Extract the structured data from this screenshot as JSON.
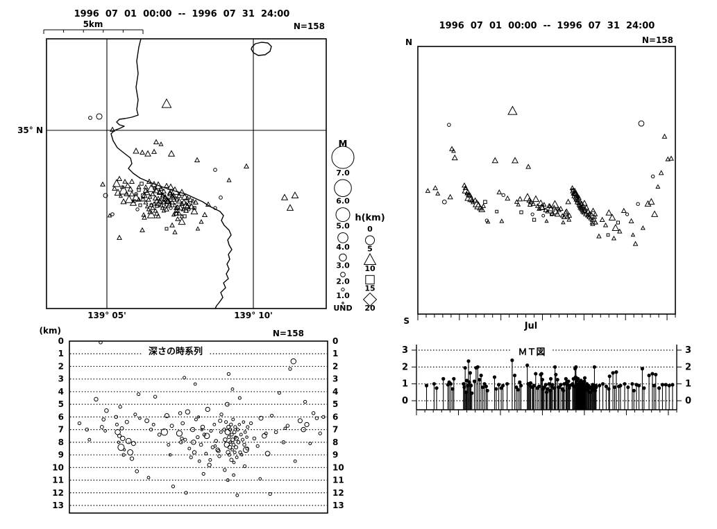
{
  "colors": {
    "ink": "#000000",
    "paper": "#ffffff"
  },
  "chart_data": {
    "type": "scatter",
    "description": "Earthquake swarm summary figure: epicenter map, N-S vs time plot, depth time-series, and magnitude-time (M-T) stem plot. All four panels depict the same 158 hypocenters.",
    "panels": {
      "map": {
        "title": "1996  07  01  00:00  --  1996  07  31  24:00",
        "n_label": "N=158",
        "scale_label": "5km",
        "lat_label": "35° N",
        "lon_labels": [
          "139° 05'",
          "139° 10'"
        ]
      },
      "time_ns": {
        "title": "1996  07  01  00:00  --  1996  07  31  24:00",
        "n_label": "N=158",
        "north_label": "N",
        "south_label": "S",
        "month_label": "Jul"
      },
      "depth_time": {
        "title": "深さの時系列",
        "unit_label": "(km)",
        "n_label": "N=158",
        "ticks": [
          "0",
          "1",
          "2",
          "3",
          "4",
          "5",
          "6",
          "7",
          "8",
          "9",
          "10",
          "11",
          "12",
          "13"
        ]
      },
      "mt": {
        "title": "ＭＴ図",
        "yticks": [
          "3",
          "2",
          "1",
          "0"
        ]
      }
    },
    "legend": {
      "m_title": "M",
      "m_items": [
        {
          "label": "7.0",
          "r": 16
        },
        {
          "label": "6.0",
          "r": 12.3
        },
        {
          "label": "5.0",
          "r": 10
        },
        {
          "label": "4.0",
          "r": 7.3
        },
        {
          "label": "3.0",
          "r": 5.2
        },
        {
          "label": "2.0",
          "r": 3.4
        },
        {
          "label": "1.0",
          "r": 2.2
        },
        {
          "label": "UND",
          "r": 1.2
        }
      ],
      "h_title": "h(km)",
      "h_rows": [
        {
          "text": "0"
        },
        {
          "symbol": "circle"
        },
        {
          "text": "5"
        },
        {
          "symbol": "triangle"
        },
        {
          "text": "10"
        },
        {
          "symbol": "square"
        },
        {
          "text": "15"
        },
        {
          "symbol": "diamond"
        },
        {
          "text": "20"
        }
      ]
    },
    "coastline": [
      [
        203,
        56
      ],
      [
        200,
        68
      ],
      [
        197,
        88
      ],
      [
        199,
        106
      ],
      [
        196,
        126
      ],
      [
        199,
        144
      ],
      [
        197,
        158
      ],
      [
        199,
        166
      ],
      [
        190,
        169
      ],
      [
        180,
        171
      ],
      [
        172,
        172
      ],
      [
        168,
        176
      ],
      [
        172,
        180
      ],
      [
        179,
        182
      ],
      [
        173,
        185
      ],
      [
        165,
        188
      ],
      [
        160,
        193
      ],
      [
        163,
        203
      ],
      [
        169,
        213
      ],
      [
        179,
        221
      ],
      [
        188,
        228
      ],
      [
        190,
        236
      ],
      [
        185,
        243
      ],
      [
        192,
        250
      ],
      [
        202,
        257
      ],
      [
        216,
        263
      ],
      [
        232,
        269
      ],
      [
        250,
        275
      ],
      [
        268,
        280
      ],
      [
        281,
        286
      ],
      [
        292,
        291
      ],
      [
        301,
        297
      ],
      [
        309,
        301
      ],
      [
        317,
        305
      ],
      [
        322,
        311
      ],
      [
        319,
        318
      ],
      [
        323,
        325
      ],
      [
        330,
        332
      ],
      [
        333,
        339
      ],
      [
        328,
        346
      ],
      [
        330,
        353
      ],
      [
        334,
        360
      ],
      [
        329,
        367
      ],
      [
        331,
        374
      ],
      [
        327,
        381
      ],
      [
        330,
        388
      ],
      [
        326,
        395
      ],
      [
        329,
        402
      ],
      [
        322,
        408
      ],
      [
        325,
        415
      ],
      [
        318,
        422
      ],
      [
        321,
        429
      ],
      [
        316,
        436
      ],
      [
        312,
        441
      ],
      [
        310,
        445
      ]
    ],
    "island": [
      [
        363,
        68
      ],
      [
        368,
        63
      ],
      [
        377,
        61
      ],
      [
        386,
        62
      ],
      [
        391,
        67
      ],
      [
        389,
        74
      ],
      [
        382,
        79
      ],
      [
        372,
        80
      ],
      [
        365,
        76
      ],
      [
        362,
        71
      ],
      [
        363,
        68
      ]
    ],
    "events_format": [
      "t_days_since_jul1",
      "map_x_px",
      "map_y_px",
      "depth_km",
      "magnitude"
    ],
    "events": [
      [
        1.2,
        148,
        266,
        6.5,
        0.9
      ],
      [
        2.1,
        190,
        262,
        7,
        1
      ],
      [
        2.4,
        200,
        270,
        7.8,
        0.75
      ],
      [
        3.2,
        152,
        282,
        4.6,
        1.3
      ],
      [
        3.75,
        130,
        170,
        0.1,
        0.95
      ],
      [
        4.1,
        225,
        205,
        6.2,
        1
      ],
      [
        4.3,
        232,
        208,
        7.1,
        0.7
      ],
      [
        3.9,
        210,
        275,
        6.8,
        1.1
      ],
      [
        4.45,
        196,
        218,
        5.5,
        1.3
      ],
      [
        5.6,
        172,
        258,
        6,
        1
      ],
      [
        5.7,
        180,
        262,
        6.6,
        0.8
      ],
      [
        5.8,
        168,
        265,
        7.2,
        1.95
      ],
      [
        5.9,
        176,
        270,
        8,
        0.5
      ],
      [
        6,
        184,
        268,
        7.5,
        1.2
      ],
      [
        6.1,
        165,
        272,
        5.2,
        0.9
      ],
      [
        6.2,
        178,
        275,
        8.4,
        2.35
      ],
      [
        6.3,
        188,
        273,
        6.9,
        1.1
      ],
      [
        6.4,
        170,
        278,
        7.7,
        1.65
      ],
      [
        6.5,
        182,
        280,
        9,
        0.9
      ],
      [
        6.6,
        174,
        283,
        8.6,
        0.45
      ],
      [
        6.9,
        190,
        280,
        6.4,
        1.15
      ],
      [
        7.1,
        196,
        285,
        7.9,
        1.95
      ],
      [
        7.3,
        186,
        288,
        8.8,
        2
      ],
      [
        7.5,
        178,
        291,
        9.3,
        1.25
      ],
      [
        7.7,
        192,
        293,
        8.1,
        1.5
      ],
      [
        7.9,
        200,
        288,
        5.8,
        0.8
      ],
      [
        8.1,
        206,
        282,
        10.3,
        1
      ],
      [
        8.3,
        162,
        309,
        4.2,
        0.85
      ],
      [
        8.45,
        158,
        311,
        6.1,
        0.6
      ],
      [
        9.3,
        213,
        222,
        6.3,
        1.4
      ],
      [
        9.8,
        240,
        268,
        7,
        0.95
      ],
      [
        10.3,
        223,
        272,
        4.4,
        0.9
      ],
      [
        10.8,
        230,
        277,
        7.4,
        1
      ],
      [
        11.4,
        240,
        150,
        7.2,
        2.4
      ],
      [
        11.7,
        247,
        222,
        5.9,
        1.5
      ],
      [
        11.9,
        235,
        282,
        8.2,
        0.8
      ],
      [
        12.1,
        228,
        286,
        9,
        0.65
      ],
      [
        12.3,
        245,
        278,
        6.7,
        1.1
      ],
      [
        9.5,
        218,
        296,
        10.8,
        0.7
      ],
      [
        10.1,
        207,
        310,
        6.6,
        0.75
      ],
      [
        12.45,
        226,
        297,
        11.5,
        0.9
      ],
      [
        13.2,
        252,
        276,
        7.3,
        2.1
      ],
      [
        13.4,
        245,
        280,
        8,
        1
      ],
      [
        13.6,
        258,
        282,
        6.5,
        1.05
      ],
      [
        13.9,
        250,
        285,
        7.8,
        0.85
      ],
      [
        14.2,
        262,
        278,
        5.6,
        1.6
      ],
      [
        14.4,
        255,
        288,
        8.5,
        0.75
      ],
      [
        14.6,
        248,
        292,
        9.2,
        0.85
      ],
      [
        14.8,
        266,
        284,
        7,
        1.55
      ],
      [
        15,
        258,
        290,
        8.8,
        1.25
      ],
      [
        15.2,
        270,
        286,
        6.2,
        0.8
      ],
      [
        15.4,
        262,
        294,
        7.6,
        0.95
      ],
      [
        15.6,
        252,
        296,
        9.5,
        0.7
      ],
      [
        15.8,
        274,
        288,
        8.2,
        1
      ],
      [
        16,
        265,
        292,
        6.8,
        1.3
      ],
      [
        16.2,
        256,
        299,
        7.4,
        0.95
      ],
      [
        16.4,
        278,
        290,
        8.9,
        0.75
      ],
      [
        16.6,
        268,
        296,
        5.4,
        1.55
      ],
      [
        16.8,
        260,
        300,
        9.8,
        1.25
      ],
      [
        17,
        272,
        294,
        7.1,
        0.8
      ],
      [
        17.2,
        282,
        292,
        8.4,
        0.95
      ],
      [
        17.4,
        264,
        302,
        6.6,
        0.7
      ],
      [
        17.6,
        254,
        304,
        7.9,
        1
      ],
      [
        17.8,
        276,
        298,
        8.6,
        1.3
      ],
      [
        18,
        268,
        304,
        9.1,
        0.95
      ],
      [
        18.2,
        258,
        308,
        7.2,
        0.75
      ],
      [
        13.3,
        284,
        231,
        5.7,
        1
      ],
      [
        14,
        254,
        308,
        12,
        0.9
      ],
      [
        15.5,
        250,
        310,
        6,
        0.5
      ],
      [
        16.1,
        280,
        300,
        10.5,
        0.85
      ],
      [
        17.5,
        262,
        312,
        8.3,
        0.6
      ],
      [
        13.8,
        246,
        300,
        2.9,
        0.8
      ],
      [
        15.1,
        272,
        302,
        3.4,
        0.7
      ],
      [
        16.5,
        248,
        286,
        7.5,
        2
      ],
      [
        14.9,
        242,
        290,
        8,
        1.6
      ],
      [
        18.1,
        250,
        282,
        6.3,
        1.15
      ],
      [
        13.5,
        238,
        286,
        7.7,
        0.9
      ],
      [
        17.9,
        244,
        296,
        8.7,
        1.1
      ],
      [
        16.9,
        236,
        292,
        9.4,
        0.8
      ],
      [
        15.9,
        232,
        288,
        7,
        0.6
      ],
      [
        18.25,
        240,
        302,
        5.8,
        0.9
      ],
      [
        18.6,
        215,
        262,
        7,
        1
      ],
      [
        18.7,
        222,
        266,
        7.8,
        1.3
      ],
      [
        18.8,
        210,
        270,
        6.4,
        0.85
      ],
      [
        18.9,
        228,
        268,
        8.2,
        1.9
      ],
      [
        19,
        218,
        272,
        7.2,
        2
      ],
      [
        19.05,
        225,
        275,
        8.8,
        1.35
      ],
      [
        19.1,
        212,
        278,
        6.8,
        1.2
      ],
      [
        19.15,
        232,
        272,
        7.6,
        0.95
      ],
      [
        19.2,
        220,
        280,
        9,
        0.8
      ],
      [
        19.25,
        208,
        282,
        8.4,
        1.3
      ],
      [
        19.3,
        230,
        278,
        7,
        1
      ],
      [
        19.35,
        216,
        284,
        8,
        0.7
      ],
      [
        19.4,
        236,
        276,
        6.6,
        0.9
      ],
      [
        19.45,
        224,
        286,
        9.4,
        1.1
      ],
      [
        19.5,
        214,
        288,
        7.4,
        0.85
      ],
      [
        19.55,
        234,
        282,
        8.6,
        0.6
      ],
      [
        19.6,
        226,
        290,
        7.8,
        1.2
      ],
      [
        19.65,
        210,
        292,
        6.2,
        0.75
      ],
      [
        19.7,
        238,
        284,
        8.2,
        0.95
      ],
      [
        19.75,
        222,
        294,
        9.6,
        0.65
      ],
      [
        19.8,
        230,
        290,
        7.2,
        1.05
      ],
      [
        19.85,
        218,
        296,
        8.8,
        0.8
      ],
      [
        19.9,
        240,
        288,
        6.8,
        0.9
      ],
      [
        19.95,
        212,
        298,
        7.6,
        0.55
      ],
      [
        20,
        228,
        294,
        8.4,
        1.15
      ],
      [
        20.1,
        236,
        292,
        9.2,
        0.7
      ],
      [
        20.2,
        220,
        300,
        7,
        0.85
      ],
      [
        20.3,
        242,
        290,
        8,
        1
      ],
      [
        20.4,
        214,
        302,
        6.6,
        0.6
      ],
      [
        20.5,
        232,
        296,
        8.8,
        0.9
      ],
      [
        20.6,
        224,
        304,
        7.4,
        0.75
      ],
      [
        20.7,
        238,
        298,
        9,
        0.5
      ],
      [
        20.8,
        216,
        306,
        7.8,
        0.8
      ],
      [
        20.9,
        234,
        300,
        6.4,
        0.65
      ],
      [
        21,
        226,
        308,
        8.2,
        0.95
      ],
      [
        21.1,
        244,
        294,
        7.2,
        0.7
      ],
      [
        21.2,
        218,
        310,
        8.6,
        2
      ],
      [
        21.3,
        236,
        304,
        7.6,
        0.6
      ],
      [
        21.4,
        228,
        312,
        6.8,
        0.8
      ],
      [
        18.65,
        204,
        265,
        10.2,
        0.9
      ],
      [
        19.02,
        200,
        274,
        11,
        0.8
      ],
      [
        19.72,
        206,
        288,
        10.6,
        0.7
      ],
      [
        20.15,
        202,
        296,
        12.2,
        0.75
      ],
      [
        19.12,
        196,
        280,
        2.6,
        0.9
      ],
      [
        19.58,
        194,
        290,
        3.8,
        0.7
      ],
      [
        20.45,
        198,
        302,
        4.5,
        0.8
      ],
      [
        21.05,
        208,
        314,
        9.9,
        0.85
      ],
      [
        18.95,
        246,
        270,
        5,
        1.4
      ],
      [
        20.05,
        248,
        284,
        7.7,
        1.35
      ],
      [
        21.35,
        254,
        300,
        8.5,
        0.9
      ],
      [
        21.8,
        205,
        332,
        6.5,
        0.9
      ],
      [
        22.2,
        254,
        308,
        7.7,
        1
      ],
      [
        22.6,
        256,
        316,
        8.3,
        0.85
      ],
      [
        23,
        270,
        298,
        6.1,
        1.45
      ],
      [
        23.4,
        280,
        305,
        7.5,
        1.65
      ],
      [
        23.8,
        262,
        320,
        8.9,
        1.7
      ],
      [
        24.3,
        248,
        325,
        5.9,
        0.9
      ],
      [
        24.8,
        300,
        295,
        7.2,
        1
      ],
      [
        25.2,
        310,
        300,
        4.1,
        0.8
      ],
      [
        25.7,
        295,
        310,
        8,
        1
      ],
      [
        26.2,
        172,
        343,
        6.7,
        0.95
      ],
      [
        26.5,
        318,
        285,
        2.2,
        0.9
      ],
      [
        26.9,
        143,
        168,
        1.6,
        1.9
      ],
      [
        27.1,
        290,
        320,
        9.5,
        0.75
      ],
      [
        22.9,
        240,
        330,
        10.9,
        0.7
      ],
      [
        23.6,
        252,
        335,
        7.3,
        0.8
      ],
      [
        24.1,
        266,
        312,
        12.1,
        0.85
      ],
      [
        25.9,
        285,
        330,
        6.9,
        0.6
      ],
      [
        27.7,
        410,
        285,
        6.3,
        1.5
      ],
      [
        28.1,
        425,
        282,
        7,
        1.6
      ],
      [
        28.5,
        418,
        300,
        6.6,
        1.55
      ],
      [
        28.9,
        330,
        260,
        8.1,
        0.75
      ],
      [
        29.3,
        355,
        240,
        5.7,
        0.95
      ],
      [
        29.7,
        162,
        187,
        6.1,
        0.95
      ],
      [
        30.1,
        205,
        220,
        7.3,
        0.9
      ],
      [
        30.5,
        222,
        219,
        6,
        0.95
      ],
      [
        28.3,
        310,
        245,
        4.8,
        0.9
      ]
    ]
  }
}
